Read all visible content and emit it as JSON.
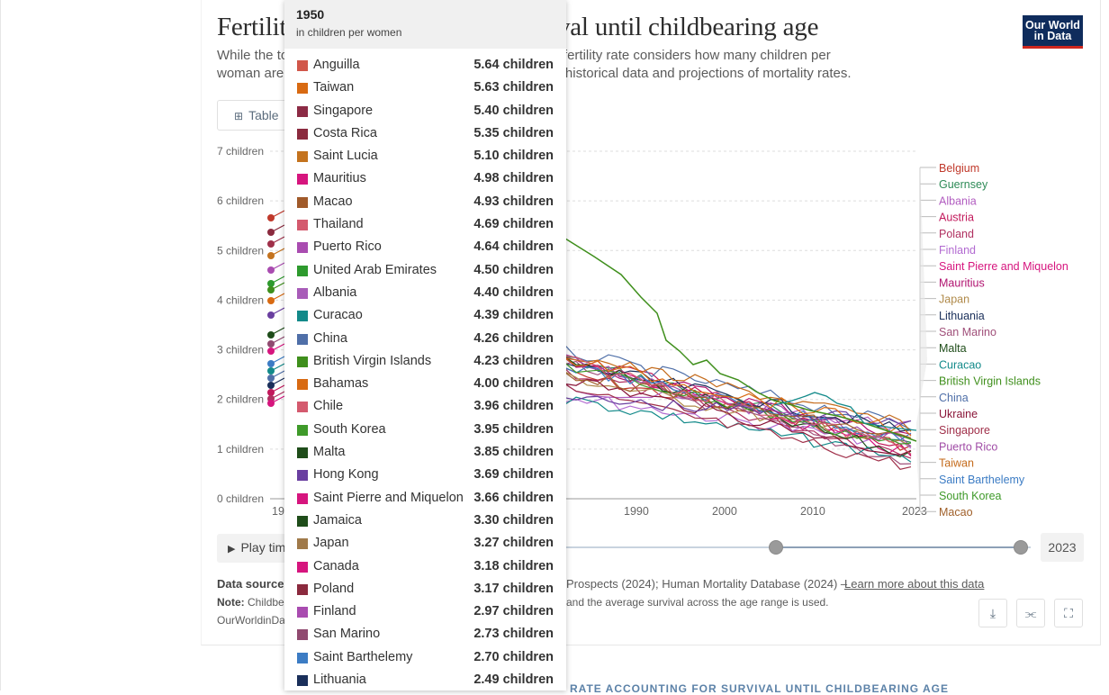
{
  "chart": {
    "title": "Fertility rate accounting for survival until childbearing age",
    "subtitle_line1": "While the total fertility rate is one measure of the effective fertility rate considers how many children per",
    "subtitle_line2": "woman are expected to survive to childbearing age, using historical data and projections of mortality rates.",
    "logo_line1": "Our World",
    "logo_line2": "in Data",
    "table_tab": "Table",
    "y_ticks": [
      "7 children",
      "6 children",
      "5 children",
      "4 children",
      "3 children",
      "2 children",
      "1 children",
      "0 children"
    ],
    "x_ticks": [
      "19",
      "1990",
      "2000",
      "2010",
      "2023"
    ],
    "legend_labels": [
      {
        "name": "Belgium",
        "color": "#c0392b"
      },
      {
        "name": "Guernsey",
        "color": "#2e8b57"
      },
      {
        "name": "Albania",
        "color": "#b15cc0"
      },
      {
        "name": "Austria",
        "color": "#c2185b"
      },
      {
        "name": "Poland",
        "color": "#b03060"
      },
      {
        "name": "Finland",
        "color": "#b26ad1"
      },
      {
        "name": "Saint Pierre and Miquelon",
        "color": "#d6157e"
      },
      {
        "name": "Mauritius",
        "color": "#b0126f"
      },
      {
        "name": "Japan",
        "color": "#b08a4a"
      },
      {
        "name": "Lithuania",
        "color": "#1a2f5a"
      },
      {
        "name": "San Marino",
        "color": "#a0507a"
      },
      {
        "name": "Malta",
        "color": "#1f4d1a"
      },
      {
        "name": "Curacao",
        "color": "#138a8a"
      },
      {
        "name": "British Virgin Islands",
        "color": "#3f8f1c"
      },
      {
        "name": "China",
        "color": "#4f6fa8"
      },
      {
        "name": "Ukraine",
        "color": "#8a1538"
      },
      {
        "name": "Singapore",
        "color": "#a0304a"
      },
      {
        "name": "Puerto Rico",
        "color": "#a04ca6"
      },
      {
        "name": "Taiwan",
        "color": "#c46a1a"
      },
      {
        "name": "Saint Barthelemy",
        "color": "#3c7cc4"
      },
      {
        "name": "South Korea",
        "color": "#3f9a2a"
      },
      {
        "name": "Macao",
        "color": "#a0602a"
      }
    ]
  },
  "controls": {
    "play_label": "Play time-lapse",
    "end_year": "2023"
  },
  "footer": {
    "source_label": "Data source:",
    "source_rest": "Prospects (2024); Human Mortality Database (2024) –",
    "source_link": "Learn more about this data",
    "note_label": "Note:",
    "note_text": "Childbearing age",
    "note_rest": "and the average survival across the age range is used.",
    "url_text": "OurWorldinData.org"
  },
  "next_section_title": "RATE ACCOUNTING FOR SURVIVAL UNTIL CHILDBEARING AGE",
  "tooltip": {
    "year": "1950",
    "unit": "in children per women",
    "rows": [
      {
        "name": "Anguilla",
        "value": "5.64 children",
        "color": "#d1574a"
      },
      {
        "name": "Taiwan",
        "value": "5.63 children",
        "color": "#d86a12"
      },
      {
        "name": "Singapore",
        "value": "5.40 children",
        "color": "#8c2b45"
      },
      {
        "name": "Costa Rica",
        "value": "5.35 children",
        "color": "#8b2a3e"
      },
      {
        "name": "Saint Lucia",
        "value": "5.10 children",
        "color": "#c4731e"
      },
      {
        "name": "Mauritius",
        "value": "4.98 children",
        "color": "#d6157e"
      },
      {
        "name": "Macao",
        "value": "4.93 children",
        "color": "#a05a2a"
      },
      {
        "name": "Thailand",
        "value": "4.69 children",
        "color": "#d45a6e"
      },
      {
        "name": "Puerto Rico",
        "value": "4.64 children",
        "color": "#a94cb0"
      },
      {
        "name": "United Arab Emirates",
        "value": "4.50 children",
        "color": "#2e9a2e"
      },
      {
        "name": "Albania",
        "value": "4.40 children",
        "color": "#a85cb8"
      },
      {
        "name": "Curacao",
        "value": "4.39 children",
        "color": "#138a8a"
      },
      {
        "name": "China",
        "value": "4.26 children",
        "color": "#4f6fa8"
      },
      {
        "name": "British Virgin Islands",
        "value": "4.23 children",
        "color": "#3f8f1c"
      },
      {
        "name": "Bahamas",
        "value": "4.00 children",
        "color": "#d86a12"
      },
      {
        "name": "Chile",
        "value": "3.96 children",
        "color": "#d45a6e"
      },
      {
        "name": "South Korea",
        "value": "3.95 children",
        "color": "#3f9a2a"
      },
      {
        "name": "Malta",
        "value": "3.85 children",
        "color": "#1f4d1a"
      },
      {
        "name": "Hong Kong",
        "value": "3.69 children",
        "color": "#6a3fa0"
      },
      {
        "name": "Saint Pierre and Miquelon",
        "value": "3.66 children",
        "color": "#d6157e"
      },
      {
        "name": "Jamaica",
        "value": "3.30 children",
        "color": "#1f4d1a"
      },
      {
        "name": "Japan",
        "value": "3.27 children",
        "color": "#a07a4a"
      },
      {
        "name": "Canada",
        "value": "3.18 children",
        "color": "#d6157e"
      },
      {
        "name": "Poland",
        "value": "3.17 children",
        "color": "#8b2a3e"
      },
      {
        "name": "Finland",
        "value": "2.97 children",
        "color": "#a94cb0"
      },
      {
        "name": "San Marino",
        "value": "2.73 children",
        "color": "#904a70"
      },
      {
        "name": "Saint Barthelemy",
        "value": "2.70 children",
        "color": "#3c7cc4"
      },
      {
        "name": "Lithuania",
        "value": "2.49 children",
        "color": "#1a2f5a"
      }
    ]
  }
}
